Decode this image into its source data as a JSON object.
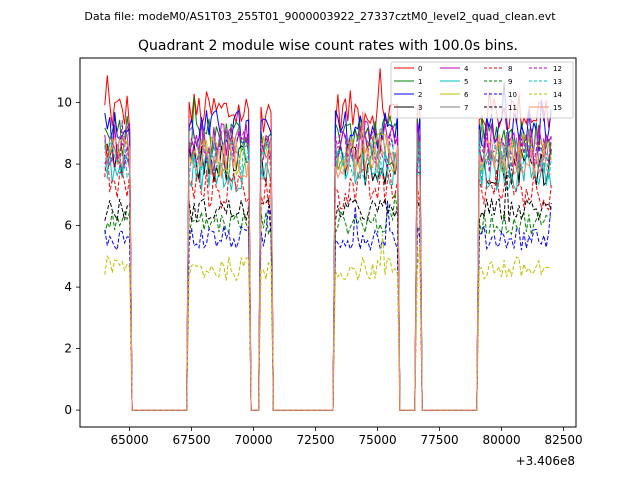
{
  "header_text": "Data file: modeM0/AS1T03_255T01_9000003922_27337cztM0_level2_quad_clean.evt",
  "chart_data": {
    "type": "line",
    "title": "Quadrant 2 module wise count rates with 100.0s bins.",
    "xlabel": "",
    "ylabel": "",
    "x_offset_label": "+3.406e8",
    "xlim": [
      63000,
      83000
    ],
    "ylim": [
      -0.55,
      11.45
    ],
    "x_ticks": [
      65000,
      67500,
      70000,
      72500,
      75000,
      77500,
      80000,
      82500
    ],
    "x_tick_labels": [
      "65000",
      "67500",
      "70000",
      "72500",
      "75000",
      "77500",
      "80000",
      "82500"
    ],
    "y_ticks": [
      0,
      2,
      4,
      6,
      8,
      10
    ],
    "y_tick_labels": [
      "0",
      "2",
      "4",
      "6",
      "8",
      "10"
    ],
    "on_segments": [
      [
        64000,
        65000
      ],
      [
        67400,
        69800
      ],
      [
        70300,
        70700
      ],
      [
        73300,
        75800
      ],
      [
        76600,
        76700
      ],
      [
        79100,
        82000
      ]
    ],
    "off_segments": [
      [
        65200,
        67300
      ],
      [
        69900,
        70200
      ],
      [
        70800,
        73200
      ],
      [
        75900,
        76500
      ],
      [
        76800,
        79000
      ]
    ],
    "legend_position": "top-right",
    "series": [
      {
        "name": "0",
        "level": 9.7,
        "color": "#ff0000",
        "dash": false
      },
      {
        "name": "1",
        "level": 8.9,
        "color": "#008000",
        "dash": false
      },
      {
        "name": "2",
        "level": 9.1,
        "color": "#0000ff",
        "dash": false
      },
      {
        "name": "3",
        "level": 8.0,
        "color": "#000000",
        "dash": false
      },
      {
        "name": "4",
        "level": 8.7,
        "color": "#bf00bf",
        "dash": false
      },
      {
        "name": "5",
        "level": 7.8,
        "color": "#00bfbf",
        "dash": false
      },
      {
        "name": "6",
        "level": 8.3,
        "color": "#bfbf00",
        "dash": false
      },
      {
        "name": "7",
        "level": 8.5,
        "color": "#808080",
        "dash": false
      },
      {
        "name": "8",
        "level": 7.2,
        "color": "#ff0000",
        "dash": true
      },
      {
        "name": "9",
        "level": 6.1,
        "color": "#008000",
        "dash": true
      },
      {
        "name": "10",
        "level": 5.6,
        "color": "#0000ff",
        "dash": true
      },
      {
        "name": "11",
        "level": 6.5,
        "color": "#000000",
        "dash": true
      },
      {
        "name": "12",
        "level": 8.4,
        "color": "#bf00bf",
        "dash": true
      },
      {
        "name": "13",
        "level": 8.1,
        "color": "#00bfbf",
        "dash": true
      },
      {
        "name": "14",
        "level": 4.6,
        "color": "#bfbf00",
        "dash": true
      },
      {
        "name": "15",
        "level": 8.2,
        "color": "#ff8c69",
        "dash": false
      }
    ]
  }
}
